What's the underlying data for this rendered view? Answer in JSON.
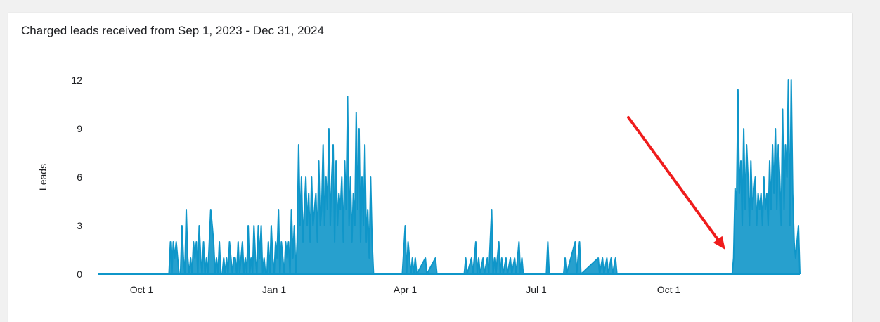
{
  "card": {
    "title": "Charged leads received from Sep 1, 2023 - Dec 31, 2024"
  },
  "colors": {
    "series": "#0f96c9",
    "arrow": "#ef1c1c",
    "axis": "#000000"
  },
  "annotation": {
    "type": "arrow",
    "icon": "red-arrow",
    "points_at": "2024-11-16"
  },
  "chart_data": {
    "type": "area",
    "title": "Charged leads received from Sep 1, 2023 - Dec 31, 2024",
    "xlabel": "",
    "ylabel": "Leads",
    "xlim": [
      "2023-09-01",
      "2024-12-31"
    ],
    "ylim": [
      0,
      12
    ],
    "yticks": [
      0,
      3,
      6,
      9,
      12
    ],
    "xticks": [
      {
        "date": "2023-10-01",
        "label": "Oct 1"
      },
      {
        "date": "2024-01-01",
        "label": "Jan 1"
      },
      {
        "date": "2024-04-01",
        "label": "Apr 1"
      },
      {
        "date": "2024-07-01",
        "label": "Jul 1"
      },
      {
        "date": "2024-10-01",
        "label": "Oct 1"
      }
    ],
    "grid": false,
    "legend": "none",
    "series": [
      {
        "points": [
          [
            "2023-09-01",
            0
          ],
          [
            "2023-10-20",
            0
          ],
          [
            "2023-10-21",
            2
          ],
          [
            "2023-10-22",
            0
          ],
          [
            "2023-10-23",
            2
          ],
          [
            "2023-10-24",
            1
          ],
          [
            "2023-10-25",
            2
          ],
          [
            "2023-10-26",
            1
          ],
          [
            "2023-10-27",
            0
          ],
          [
            "2023-10-28",
            0
          ],
          [
            "2023-10-29",
            3
          ],
          [
            "2023-10-30",
            1
          ],
          [
            "2023-10-31",
            0
          ],
          [
            "2023-11-01",
            4
          ],
          [
            "2023-11-02",
            1
          ],
          [
            "2023-11-03",
            0
          ],
          [
            "2023-11-04",
            1
          ],
          [
            "2023-11-05",
            0
          ],
          [
            "2023-11-06",
            2
          ],
          [
            "2023-11-07",
            1
          ],
          [
            "2023-11-08",
            2
          ],
          [
            "2023-11-09",
            0
          ],
          [
            "2023-11-10",
            3
          ],
          [
            "2023-11-11",
            1
          ],
          [
            "2023-11-12",
            0
          ],
          [
            "2023-11-13",
            2
          ],
          [
            "2023-11-14",
            0
          ],
          [
            "2023-11-15",
            1
          ],
          [
            "2023-11-16",
            0
          ],
          [
            "2023-11-17",
            2
          ],
          [
            "2023-11-18",
            4
          ],
          [
            "2023-11-19",
            3
          ],
          [
            "2023-11-20",
            2
          ],
          [
            "2023-11-21",
            0
          ],
          [
            "2023-11-22",
            1
          ],
          [
            "2023-11-23",
            0
          ],
          [
            "2023-11-24",
            2
          ],
          [
            "2023-11-25",
            0
          ],
          [
            "2023-11-26",
            0
          ],
          [
            "2023-11-27",
            1
          ],
          [
            "2023-11-28",
            0
          ],
          [
            "2023-11-29",
            1
          ],
          [
            "2023-11-30",
            0
          ],
          [
            "2023-12-01",
            2
          ],
          [
            "2023-12-02",
            1
          ],
          [
            "2023-12-03",
            0
          ],
          [
            "2023-12-04",
            1
          ],
          [
            "2023-12-05",
            1
          ],
          [
            "2023-12-06",
            0
          ],
          [
            "2023-12-07",
            2
          ],
          [
            "2023-12-08",
            0
          ],
          [
            "2023-12-09",
            1
          ],
          [
            "2023-12-10",
            2
          ],
          [
            "2023-12-11",
            0
          ],
          [
            "2023-12-12",
            1
          ],
          [
            "2023-12-13",
            0
          ],
          [
            "2023-12-14",
            3
          ],
          [
            "2023-12-15",
            0
          ],
          [
            "2023-12-16",
            1
          ],
          [
            "2023-12-17",
            0
          ],
          [
            "2023-12-18",
            3
          ],
          [
            "2023-12-19",
            1
          ],
          [
            "2023-12-20",
            0
          ],
          [
            "2023-12-21",
            3
          ],
          [
            "2023-12-22",
            1
          ],
          [
            "2023-12-23",
            3
          ],
          [
            "2023-12-24",
            0
          ],
          [
            "2023-12-25",
            1
          ],
          [
            "2023-12-26",
            0
          ],
          [
            "2023-12-27",
            0
          ],
          [
            "2023-12-28",
            2
          ],
          [
            "2023-12-29",
            0
          ],
          [
            "2023-12-30",
            3
          ],
          [
            "2023-12-31",
            1
          ],
          [
            "2024-01-01",
            0
          ],
          [
            "2024-01-02",
            2
          ],
          [
            "2024-01-03",
            1
          ],
          [
            "2024-01-04",
            4
          ],
          [
            "2024-01-05",
            0
          ],
          [
            "2024-01-06",
            2
          ],
          [
            "2024-01-07",
            1
          ],
          [
            "2024-01-08",
            0
          ],
          [
            "2024-01-09",
            2
          ],
          [
            "2024-01-10",
            1
          ],
          [
            "2024-01-11",
            2
          ],
          [
            "2024-01-12",
            0
          ],
          [
            "2024-01-13",
            4
          ],
          [
            "2024-01-14",
            1
          ],
          [
            "2024-01-15",
            3
          ],
          [
            "2024-01-16",
            0
          ],
          [
            "2024-01-17",
            2
          ],
          [
            "2024-01-18",
            8
          ],
          [
            "2024-01-19",
            3
          ],
          [
            "2024-01-20",
            6
          ],
          [
            "2024-01-21",
            2
          ],
          [
            "2024-01-22",
            4
          ],
          [
            "2024-01-23",
            6
          ],
          [
            "2024-01-24",
            3
          ],
          [
            "2024-01-25",
            5
          ],
          [
            "2024-01-26",
            2
          ],
          [
            "2024-01-27",
            6
          ],
          [
            "2024-01-28",
            3
          ],
          [
            "2024-01-29",
            4
          ],
          [
            "2024-01-30",
            5
          ],
          [
            "2024-01-31",
            2
          ],
          [
            "2024-02-01",
            7
          ],
          [
            "2024-02-02",
            3
          ],
          [
            "2024-02-03",
            4
          ],
          [
            "2024-02-04",
            8
          ],
          [
            "2024-02-05",
            3
          ],
          [
            "2024-02-06",
            6
          ],
          [
            "2024-02-07",
            4
          ],
          [
            "2024-02-08",
            9
          ],
          [
            "2024-02-09",
            3
          ],
          [
            "2024-02-10",
            6
          ],
          [
            "2024-02-11",
            8
          ],
          [
            "2024-02-12",
            2
          ],
          [
            "2024-02-13",
            7
          ],
          [
            "2024-02-14",
            3
          ],
          [
            "2024-02-15",
            5
          ],
          [
            "2024-02-16",
            4
          ],
          [
            "2024-02-17",
            6
          ],
          [
            "2024-02-18",
            2
          ],
          [
            "2024-02-19",
            7
          ],
          [
            "2024-02-20",
            4
          ],
          [
            "2024-02-21",
            11
          ],
          [
            "2024-02-22",
            3
          ],
          [
            "2024-02-23",
            6
          ],
          [
            "2024-02-24",
            2
          ],
          [
            "2024-02-25",
            5
          ],
          [
            "2024-02-26",
            3
          ],
          [
            "2024-02-27",
            10
          ],
          [
            "2024-02-28",
            4
          ],
          [
            "2024-02-29",
            9
          ],
          [
            "2024-03-01",
            2
          ],
          [
            "2024-03-02",
            6
          ],
          [
            "2024-03-03",
            3
          ],
          [
            "2024-03-04",
            8
          ],
          [
            "2024-03-05",
            2
          ],
          [
            "2024-03-06",
            4
          ],
          [
            "2024-03-07",
            1
          ],
          [
            "2024-03-08",
            6
          ],
          [
            "2024-03-09",
            2
          ],
          [
            "2024-03-10",
            0
          ],
          [
            "2024-03-30",
            0
          ],
          [
            "2024-04-01",
            3
          ],
          [
            "2024-04-02",
            0
          ],
          [
            "2024-04-03",
            2
          ],
          [
            "2024-04-04",
            1
          ],
          [
            "2024-04-05",
            0
          ],
          [
            "2024-04-06",
            1
          ],
          [
            "2024-04-07",
            0
          ],
          [
            "2024-04-08",
            1
          ],
          [
            "2024-04-09",
            0
          ],
          [
            "2024-04-15",
            1
          ],
          [
            "2024-04-16",
            0
          ],
          [
            "2024-04-22",
            1
          ],
          [
            "2024-04-23",
            0
          ],
          [
            "2024-05-12",
            0
          ],
          [
            "2024-05-13",
            1
          ],
          [
            "2024-05-14",
            0
          ],
          [
            "2024-05-17",
            1
          ],
          [
            "2024-05-18",
            0
          ],
          [
            "2024-05-20",
            2
          ],
          [
            "2024-05-21",
            0
          ],
          [
            "2024-05-22",
            1
          ],
          [
            "2024-05-23",
            0
          ],
          [
            "2024-05-25",
            1
          ],
          [
            "2024-05-26",
            0
          ],
          [
            "2024-05-28",
            1
          ],
          [
            "2024-05-29",
            0
          ],
          [
            "2024-05-31",
            4
          ],
          [
            "2024-06-01",
            0
          ],
          [
            "2024-06-02",
            1
          ],
          [
            "2024-06-03",
            0
          ],
          [
            "2024-06-05",
            2
          ],
          [
            "2024-06-06",
            0
          ],
          [
            "2024-06-07",
            1
          ],
          [
            "2024-06-08",
            0
          ],
          [
            "2024-06-10",
            1
          ],
          [
            "2024-06-11",
            0
          ],
          [
            "2024-06-13",
            1
          ],
          [
            "2024-06-14",
            0
          ],
          [
            "2024-06-16",
            1
          ],
          [
            "2024-06-17",
            0
          ],
          [
            "2024-06-19",
            2
          ],
          [
            "2024-06-20",
            0
          ],
          [
            "2024-06-21",
            1
          ],
          [
            "2024-06-22",
            0
          ],
          [
            "2024-06-24",
            0
          ],
          [
            "2024-07-08",
            0
          ],
          [
            "2024-07-09",
            2
          ],
          [
            "2024-07-10",
            0
          ],
          [
            "2024-07-20",
            0
          ],
          [
            "2024-07-21",
            1
          ],
          [
            "2024-07-22",
            0
          ],
          [
            "2024-07-28",
            2
          ],
          [
            "2024-07-29",
            0
          ],
          [
            "2024-07-31",
            2
          ],
          [
            "2024-08-01",
            0
          ],
          [
            "2024-08-13",
            1
          ],
          [
            "2024-08-14",
            0
          ],
          [
            "2024-08-16",
            1
          ],
          [
            "2024-08-17",
            0
          ],
          [
            "2024-08-19",
            1
          ],
          [
            "2024-08-20",
            0
          ],
          [
            "2024-08-22",
            1
          ],
          [
            "2024-08-23",
            0
          ],
          [
            "2024-08-25",
            1
          ],
          [
            "2024-08-26",
            0
          ],
          [
            "2024-11-14",
            0
          ],
          [
            "2024-11-15",
            1
          ],
          [
            "2024-11-16",
            5.3
          ],
          [
            "2024-11-17",
            4
          ],
          [
            "2024-11-18",
            11.4
          ],
          [
            "2024-11-19",
            5
          ],
          [
            "2024-11-20",
            7
          ],
          [
            "2024-11-21",
            3
          ],
          [
            "2024-11-22",
            9
          ],
          [
            "2024-11-23",
            4
          ],
          [
            "2024-11-24",
            8
          ],
          [
            "2024-11-25",
            6
          ],
          [
            "2024-11-26",
            3
          ],
          [
            "2024-11-27",
            7
          ],
          [
            "2024-11-28",
            4
          ],
          [
            "2024-11-29",
            5
          ],
          [
            "2024-11-30",
            6
          ],
          [
            "2024-12-01",
            3
          ],
          [
            "2024-12-02",
            5
          ],
          [
            "2024-12-03",
            4
          ],
          [
            "2024-12-04",
            5
          ],
          [
            "2024-12-05",
            3
          ],
          [
            "2024-12-06",
            6
          ],
          [
            "2024-12-07",
            4
          ],
          [
            "2024-12-08",
            5
          ],
          [
            "2024-12-09",
            3
          ],
          [
            "2024-12-10",
            7
          ],
          [
            "2024-12-11",
            4
          ],
          [
            "2024-12-12",
            8
          ],
          [
            "2024-12-13",
            5
          ],
          [
            "2024-12-14",
            9
          ],
          [
            "2024-12-15",
            4
          ],
          [
            "2024-12-16",
            8
          ],
          [
            "2024-12-17",
            6
          ],
          [
            "2024-12-18",
            3
          ],
          [
            "2024-12-19",
            10.2
          ],
          [
            "2024-12-20",
            4
          ],
          [
            "2024-12-21",
            8
          ],
          [
            "2024-12-22",
            6
          ],
          [
            "2024-12-23",
            12
          ],
          [
            "2024-12-24",
            3
          ],
          [
            "2024-12-25",
            12
          ],
          [
            "2024-12-26",
            5
          ],
          [
            "2024-12-27",
            2
          ],
          [
            "2024-12-28",
            1
          ],
          [
            "2024-12-29",
            2
          ],
          [
            "2024-12-30",
            3
          ],
          [
            "2024-12-31",
            0
          ]
        ]
      }
    ]
  }
}
